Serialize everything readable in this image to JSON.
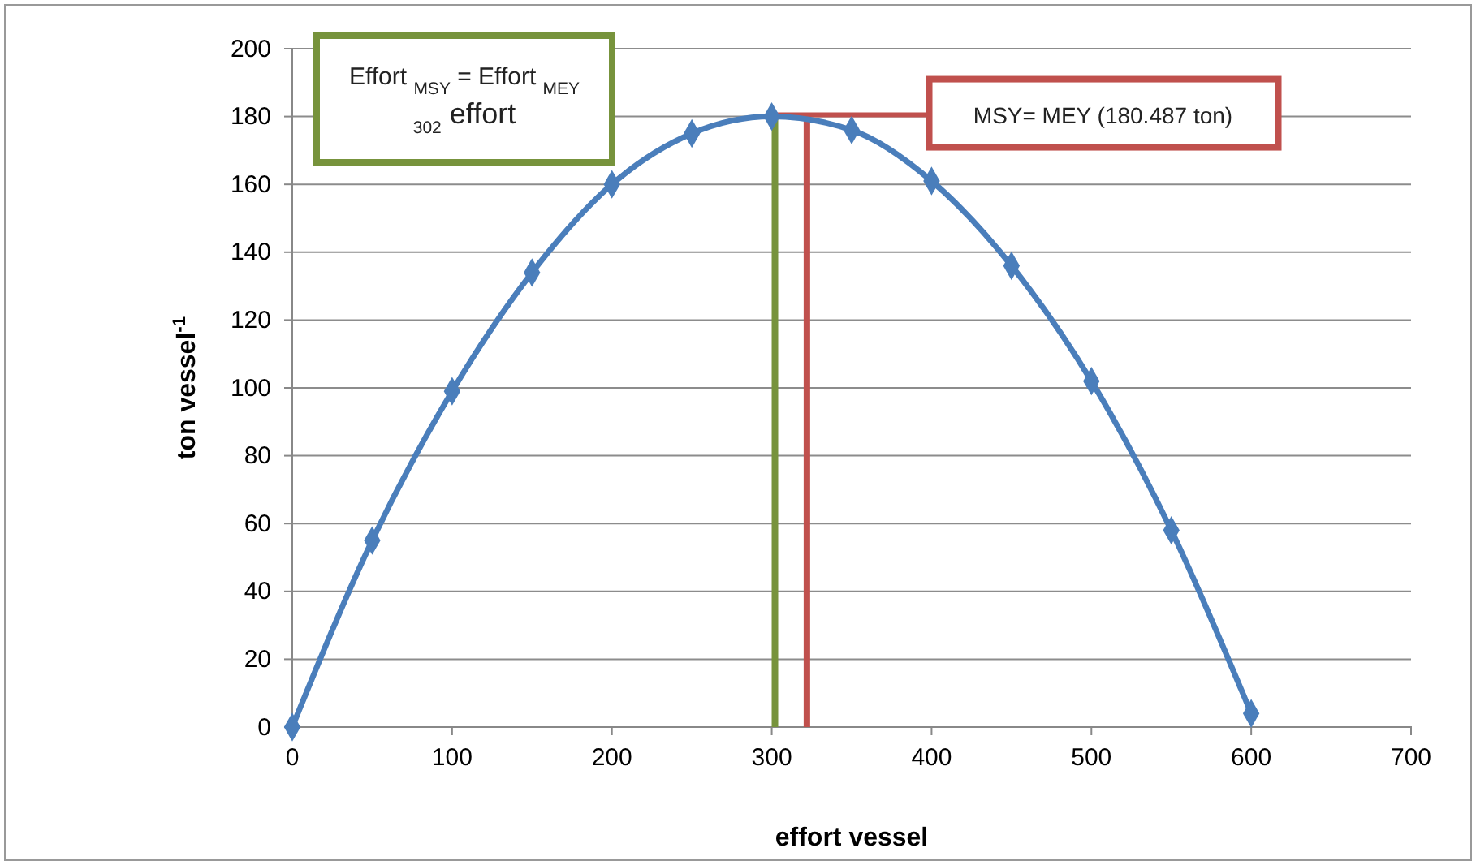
{
  "chart_data": {
    "type": "line",
    "xlabel": "effort vessel",
    "ylabel": "ton vessel$^{-1}$",
    "x": [
      0,
      50,
      100,
      150,
      200,
      250,
      300,
      350,
      400,
      450,
      500,
      550,
      600
    ],
    "series": [
      {
        "color": "#4a7ebb",
        "values": [
          0,
          55,
          99,
          134,
          160,
          175,
          180,
          176,
          161,
          136,
          102,
          58,
          4
        ]
      }
    ],
    "xlim": [
      0,
      700
    ],
    "xticks": [
      0,
      100,
      200,
      300,
      400,
      500,
      600,
      700
    ],
    "ylim": [
      0,
      200
    ],
    "yticks": [
      0,
      20,
      40,
      60,
      80,
      100,
      120,
      140,
      160,
      180,
      200
    ],
    "grid": "y",
    "marker": "diamond",
    "line_style": "solid",
    "ref_lines": [
      {
        "axis": "x",
        "value": 302,
        "label": "Effort $_{MSY}$ = Effort $_{MEY}$\n$_{302}$ effort",
        "color": "#77933c"
      },
      {
        "axis": "x",
        "value": 322,
        "color": "#c0504d"
      },
      {
        "axis": "y",
        "value": 180.487,
        "label": "MSY= MEY (180.487  ton)",
        "color": "#c0504d"
      }
    ]
  }
}
